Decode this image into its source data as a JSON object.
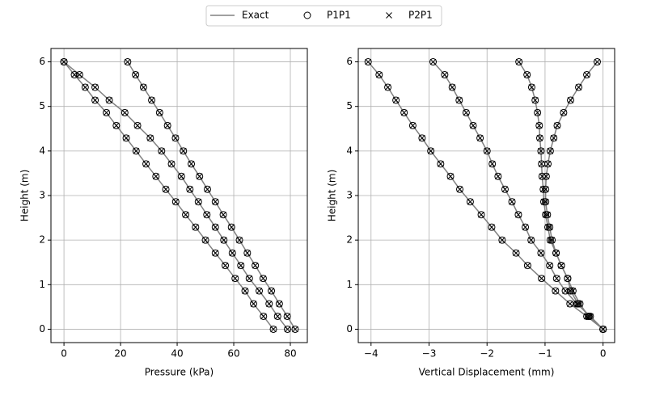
{
  "legend": [
    {
      "name": "Exact",
      "color": "#808080"
    },
    {
      "name": "P1P1",
      "color": "#000000"
    },
    {
      "name": "P2P1",
      "color": "#000000"
    }
  ],
  "chart_data": [
    {
      "type": "line",
      "x_label": "Pressure (kPa)",
      "y_label": "Height (m)",
      "xlim": [
        -4.6,
        86
      ],
      "ylim": [
        -0.3,
        6.3
      ],
      "xticks": [
        0,
        20,
        40,
        60,
        80
      ],
      "yticks": [
        0,
        1,
        2,
        3,
        4,
        5,
        6
      ],
      "grid": true,
      "heights": [
        6,
        5.71,
        5.43,
        5.14,
        4.86,
        4.57,
        4.29,
        4,
        3.71,
        3.43,
        3.14,
        2.86,
        2.57,
        2.29,
        2,
        1.71,
        1.43,
        1.14,
        0.86,
        0.57,
        0.29,
        0
      ],
      "curves": [
        {
          "exact": [
            22.5,
            25.3,
            28.1,
            31,
            33.8,
            36.6,
            39.4,
            42.2,
            45,
            47.9,
            50.7,
            53.5,
            56.3,
            59.2,
            62,
            64.8,
            67.6,
            70.4,
            73.3,
            76.1,
            78.9,
            81.7
          ],
          "p1p1": [
            22.5,
            25.3,
            28.1,
            31,
            33.8,
            36.6,
            39.4,
            42.2,
            45,
            47.9,
            50.7,
            53.5,
            56.3,
            59.2,
            62,
            64.8,
            67.6,
            70.4,
            73.3,
            76.1,
            78.9,
            81.7
          ],
          "p2p1": [
            22.5,
            25.3,
            28.1,
            31,
            33.8,
            36.6,
            39.4,
            42.2,
            45,
            47.9,
            50.7,
            53.5,
            56.3,
            59.2,
            62,
            64.8,
            67.6,
            70.4,
            73.3,
            76.1,
            78.9,
            81.7
          ]
        },
        {
          "exact": [
            0,
            5.5,
            11,
            16,
            21.5,
            26,
            30.5,
            34.5,
            38,
            41.5,
            44.5,
            47.5,
            50.5,
            53.5,
            56.5,
            59.5,
            62.5,
            65.5,
            69,
            72.5,
            75.5,
            79
          ],
          "p1p1": [
            0,
            5.5,
            11,
            16,
            21.5,
            26,
            30.5,
            34.5,
            38,
            41.5,
            44.5,
            47.5,
            50.5,
            53.5,
            56.5,
            59.5,
            62.5,
            65.5,
            69,
            72.5,
            75.5,
            79
          ],
          "p2p1": [
            0,
            5.5,
            11,
            16,
            21.5,
            26,
            30.5,
            34.5,
            38,
            41.5,
            44.5,
            47.5,
            50.5,
            53.5,
            56.5,
            59.5,
            62.5,
            65.5,
            69,
            72.5,
            75.5,
            79
          ]
        },
        {
          "exact": [
            0,
            3.7,
            7.5,
            11,
            15,
            18.5,
            22,
            25.5,
            29,
            32.5,
            36,
            39.5,
            43,
            46.5,
            50,
            53.5,
            57,
            60.5,
            64,
            67,
            70.5,
            74
          ],
          "p1p1": [
            0,
            3.7,
            7.5,
            11,
            15,
            18.5,
            22,
            25.5,
            29,
            32.5,
            36,
            39.5,
            43,
            46.5,
            50,
            53.5,
            57,
            60.5,
            64,
            67,
            70.5,
            74
          ],
          "p2p1": [
            0,
            3.7,
            7.5,
            11,
            15,
            18.5,
            22,
            25.5,
            29,
            32.5,
            36,
            39.5,
            43,
            46.5,
            50,
            53.5,
            57,
            60.5,
            64,
            67,
            70.5,
            74
          ]
        }
      ]
    },
    {
      "type": "line",
      "x_label": "Vertical Displacement (mm)",
      "y_label": "Height (m)",
      "xlim": [
        -4.22,
        0.2
      ],
      "ylim": [
        -0.3,
        6.3
      ],
      "xticks": [
        {
          "value": -4,
          "label": "−4"
        },
        {
          "value": -3,
          "label": "−3"
        },
        {
          "value": -2,
          "label": "−2"
        },
        {
          "value": -1,
          "label": "−1"
        },
        0
      ],
      "yticks": [
        0,
        1,
        2,
        3,
        4,
        5,
        6
      ],
      "grid": true,
      "heights": [
        6,
        5.71,
        5.43,
        5.14,
        4.86,
        4.57,
        4.29,
        4,
        3.71,
        3.43,
        3.14,
        2.86,
        2.57,
        2.29,
        2,
        1.71,
        1.43,
        1.14,
        0.86,
        0.57,
        0.29,
        0
      ],
      "curves": [
        {
          "exact": [
            -4.05,
            -3.86,
            -3.71,
            -3.57,
            -3.43,
            -3.28,
            -3.12,
            -2.97,
            -2.8,
            -2.63,
            -2.47,
            -2.29,
            -2.1,
            -1.92,
            -1.74,
            -1.5,
            -1.3,
            -1.06,
            -0.82,
            -0.57,
            -0.28,
            0
          ],
          "p1p1": [
            -4.05,
            -3.86,
            -3.71,
            -3.57,
            -3.43,
            -3.28,
            -3.12,
            -2.97,
            -2.8,
            -2.63,
            -2.47,
            -2.29,
            -2.1,
            -1.92,
            -1.74,
            -1.5,
            -1.3,
            -1.06,
            -0.82,
            -0.57,
            -0.28,
            0
          ],
          "p2p1": [
            -4.05,
            -3.86,
            -3.71,
            -3.57,
            -3.43,
            -3.28,
            -3.12,
            -2.97,
            -2.8,
            -2.63,
            -2.47,
            -2.29,
            -2.1,
            -1.92,
            -1.74,
            -1.5,
            -1.3,
            -1.06,
            -0.82,
            -0.57,
            -0.28,
            0
          ]
        },
        {
          "exact": [
            -2.93,
            -2.73,
            -2.6,
            -2.48,
            -2.36,
            -2.24,
            -2.12,
            -2,
            -1.91,
            -1.81,
            -1.69,
            -1.57,
            -1.46,
            -1.34,
            -1.24,
            -1.07,
            -0.92,
            -0.8,
            -0.65,
            -0.45,
            -0.22,
            0
          ],
          "p1p1": [
            -2.93,
            -2.73,
            -2.6,
            -2.48,
            -2.36,
            -2.24,
            -2.12,
            -2,
            -1.91,
            -1.81,
            -1.69,
            -1.57,
            -1.46,
            -1.34,
            -1.24,
            -1.07,
            -0.92,
            -0.8,
            -0.65,
            -0.45,
            -0.22,
            0
          ],
          "p2p1": [
            -2.93,
            -2.73,
            -2.6,
            -2.48,
            -2.36,
            -2.24,
            -2.12,
            -2,
            -1.91,
            -1.81,
            -1.69,
            -1.57,
            -1.46,
            -1.34,
            -1.24,
            -1.07,
            -0.92,
            -0.8,
            -0.65,
            -0.45,
            -0.22,
            0
          ]
        },
        {
          "exact": [
            -1.45,
            -1.31,
            -1.23,
            -1.17,
            -1.13,
            -1.1,
            -1.09,
            -1.07,
            -1.06,
            -1.05,
            -1.03,
            -1.02,
            -0.99,
            -0.95,
            -0.91,
            -0.81,
            -0.72,
            -0.61,
            -0.52,
            -0.4,
            -0.25,
            0
          ],
          "p1p1": [
            -1.45,
            -1.31,
            -1.23,
            -1.17,
            -1.13,
            -1.1,
            -1.09,
            -1.07,
            -1.06,
            -1.05,
            -1.03,
            -1.02,
            -0.99,
            -0.95,
            -0.91,
            -0.81,
            -0.72,
            -0.61,
            -0.52,
            -0.4,
            -0.25,
            0
          ],
          "p2p1": [
            -1.45,
            -1.31,
            -1.23,
            -1.17,
            -1.13,
            -1.1,
            -1.09,
            -1.07,
            -1.06,
            -1.05,
            -1.03,
            -1.02,
            -0.99,
            -0.95,
            -0.91,
            -0.81,
            -0.72,
            -0.61,
            -0.52,
            -0.4,
            -0.25,
            0
          ]
        },
        {
          "exact": [
            -0.1,
            -0.28,
            -0.42,
            -0.56,
            -0.68,
            -0.79,
            -0.85,
            -0.91,
            -0.95,
            -0.98,
            -0.99,
            -0.99,
            -0.96,
            -0.92,
            -0.88,
            -0.81,
            -0.72,
            -0.61,
            -0.56,
            -0.43,
            -0.24,
            0
          ],
          "p1p1": [
            -0.1,
            -0.28,
            -0.42,
            -0.56,
            -0.68,
            -0.79,
            -0.85,
            -0.91,
            -0.95,
            -0.98,
            -0.99,
            -0.99,
            -0.96,
            -0.92,
            -0.88,
            -0.81,
            -0.72,
            -0.61,
            -0.56,
            -0.43,
            -0.24,
            0
          ],
          "p2p1": [
            -0.1,
            -0.28,
            -0.42,
            -0.56,
            -0.68,
            -0.79,
            -0.85,
            -0.91,
            -0.95,
            -0.98,
            -0.99,
            -0.99,
            -0.96,
            -0.92,
            -0.88,
            -0.81,
            -0.72,
            -0.61,
            -0.56,
            -0.43,
            -0.24,
            0
          ]
        }
      ]
    }
  ]
}
